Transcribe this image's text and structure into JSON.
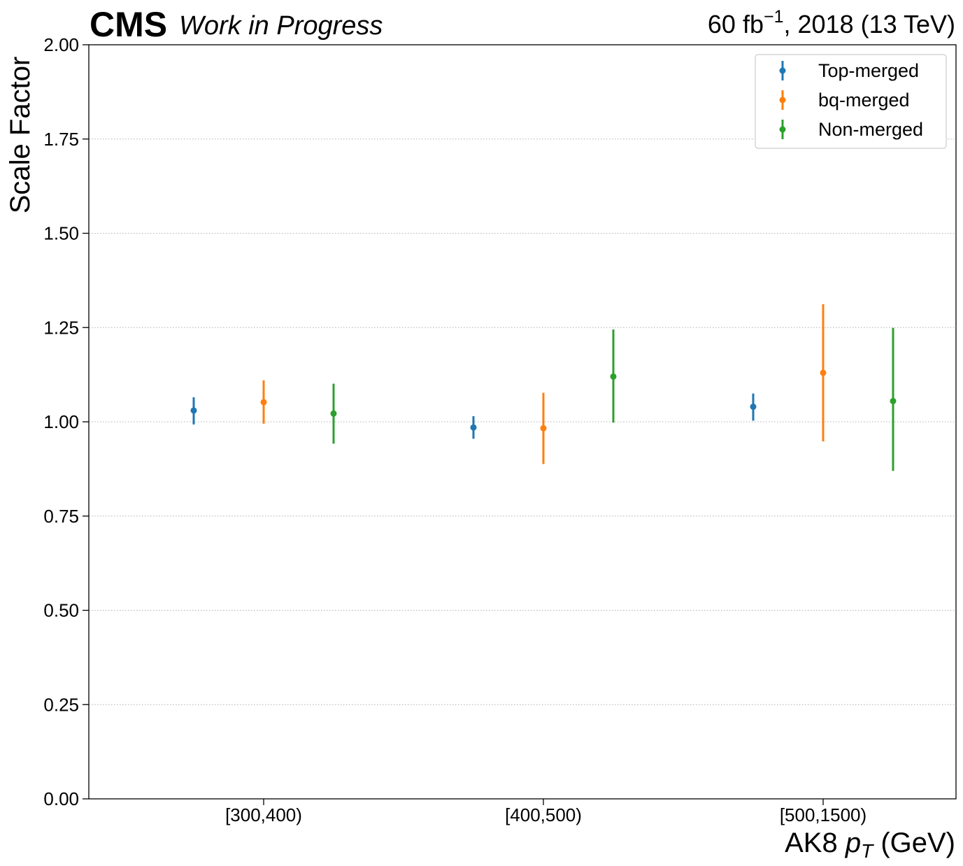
{
  "header": {
    "experiment": "CMS",
    "status": "Work in Progress",
    "lumi_value": "60 fb",
    "lumi_exp": "−1",
    "lumi_rest": ", 2018 (13 TeV)"
  },
  "chart_data": {
    "type": "scatter",
    "xlabel_main": "AK8 ",
    "xlabel_var": "p",
    "xlabel_sub": "T",
    "xlabel_unit": " (GeV)",
    "ylabel": "Scale Factor",
    "categories": [
      "[300,400)",
      "[400,500)",
      "[500,1500)"
    ],
    "ylim": [
      0,
      2
    ],
    "yticks": [
      "0.00",
      "0.25",
      "0.50",
      "0.75",
      "1.00",
      "1.25",
      "1.50",
      "1.75",
      "2.00"
    ],
    "grid": "horizontal dotted",
    "legend_position": "top-right",
    "series": [
      {
        "name": "Top-merged",
        "color": "#1f77b4",
        "offset": -0.25,
        "values": [
          1.03,
          0.985,
          1.04
        ],
        "err_low": [
          0.993,
          0.955,
          1.003
        ],
        "err_high": [
          1.065,
          1.015,
          1.075
        ]
      },
      {
        "name": "bq-merged",
        "color": "#ff7f0e",
        "offset": 0.0,
        "values": [
          1.052,
          0.983,
          1.13
        ],
        "err_low": [
          0.995,
          0.888,
          0.948
        ],
        "err_high": [
          1.11,
          1.077,
          1.312
        ]
      },
      {
        "name": "Non-merged",
        "color": "#2ca02c",
        "offset": 0.25,
        "values": [
          1.022,
          1.12,
          1.055
        ],
        "err_low": [
          0.942,
          0.998,
          0.87
        ],
        "err_high": [
          1.101,
          1.245,
          1.249
        ]
      }
    ]
  }
}
